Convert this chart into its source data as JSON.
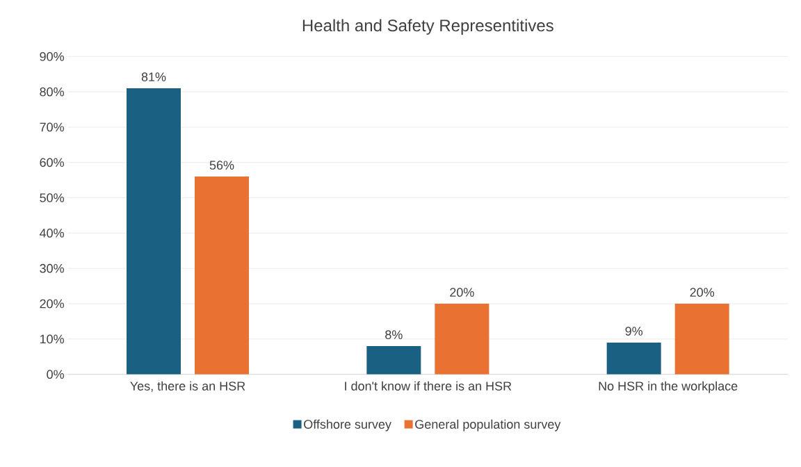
{
  "chart_data": {
    "type": "bar",
    "title": "Health and Safety Representitives",
    "categories": [
      "Yes, there is an HSR",
      "I don't know if there is an HSR",
      "No HSR in the workplace"
    ],
    "series": [
      {
        "name": "Offshore survey",
        "color": "#1a6083",
        "values": [
          81,
          8,
          9
        ],
        "value_labels": [
          "81%",
          "8%",
          "9%"
        ]
      },
      {
        "name": "General population survey",
        "color": "#e97132",
        "values": [
          56,
          20,
          20
        ],
        "value_labels": [
          "56%",
          "20%",
          "20%"
        ]
      }
    ],
    "ylim": [
      0,
      90
    ],
    "yticks": [
      {
        "value": 0,
        "label": "0%"
      },
      {
        "value": 10,
        "label": "10%"
      },
      {
        "value": 20,
        "label": "20%"
      },
      {
        "value": 30,
        "label": "30%"
      },
      {
        "value": 40,
        "label": "40%"
      },
      {
        "value": 50,
        "label": "50%"
      },
      {
        "value": 60,
        "label": "60%"
      },
      {
        "value": 70,
        "label": "70%"
      },
      {
        "value": 80,
        "label": "80%"
      },
      {
        "value": 90,
        "label": "90%"
      }
    ],
    "grid": "y",
    "legend": "bottom"
  }
}
